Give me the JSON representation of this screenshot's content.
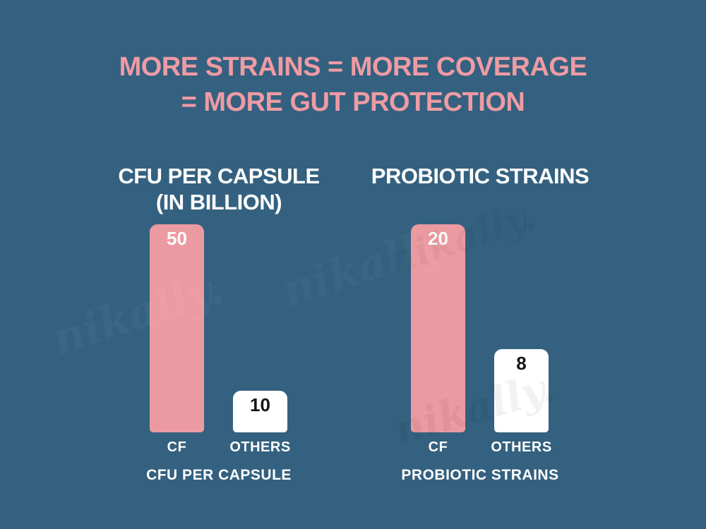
{
  "header": {
    "line1": "MORE STRAINS = MORE COVERAGE",
    "line2": "= MORE GUT PROTECTION"
  },
  "colors": {
    "background": "#34617f",
    "title_pink": "#ef9ba4",
    "bar_pink": "#ec9aa1",
    "bar_white": "#ffffff",
    "label_white": "#ffffff",
    "label_black": "#151515"
  },
  "watermark": {
    "text": "nikally."
  },
  "chart_data": [
    {
      "type": "bar",
      "title": "CFU PER CAPSULE",
      "subtitle": "(IN BILLION)",
      "footer": "CFU PER CAPSULE",
      "categories": [
        "CF",
        "OTHERS"
      ],
      "values": [
        50,
        10
      ],
      "bar_colors": [
        "#ec9aa1",
        "#ffffff"
      ],
      "value_label_colors": [
        "#ffffff",
        "#151515"
      ],
      "ylim": [
        0,
        50
      ],
      "grid": false,
      "legend": false
    },
    {
      "type": "bar",
      "title": "PROBIOTIC STRAINS",
      "subtitle": "",
      "footer": "PROBIOTIC STRAINS",
      "categories": [
        "CF",
        "OTHERS"
      ],
      "values": [
        20,
        8
      ],
      "bar_colors": [
        "#ec9aa1",
        "#ffffff"
      ],
      "value_label_colors": [
        "#ffffff",
        "#151515"
      ],
      "ylim": [
        0,
        20
      ],
      "grid": false,
      "legend": false
    }
  ]
}
